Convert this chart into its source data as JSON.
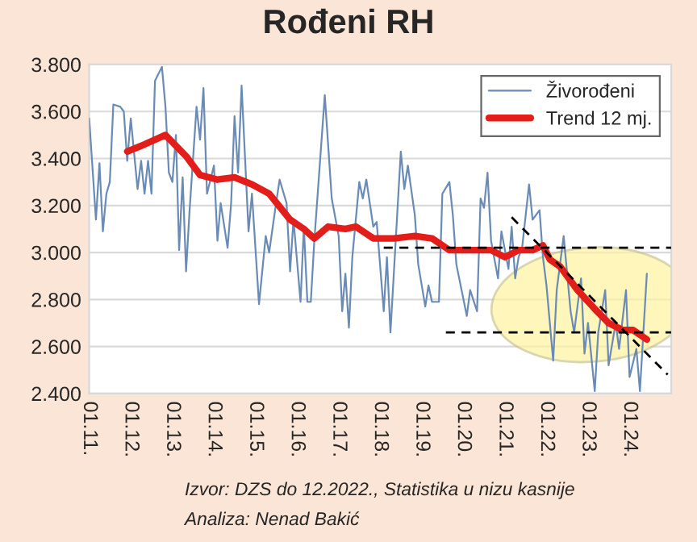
{
  "chart_data": {
    "type": "line",
    "title": "Rođeni RH",
    "xlim": [
      "2011-01",
      "2025-01"
    ],
    "xticks": [
      {
        "value": "2011-01",
        "label": "01.11."
      },
      {
        "value": "2012-01",
        "label": "01.12."
      },
      {
        "value": "2013-01",
        "label": "01.13."
      },
      {
        "value": "2014-01",
        "label": "01.14."
      },
      {
        "value": "2015-01",
        "label": "01.15."
      },
      {
        "value": "2016-01",
        "label": "01.16."
      },
      {
        "value": "2017-01",
        "label": "01.17."
      },
      {
        "value": "2018-01",
        "label": "01.18."
      },
      {
        "value": "2019-01",
        "label": "01.19."
      },
      {
        "value": "2020-01",
        "label": "01.20."
      },
      {
        "value": "2021-01",
        "label": "01.21."
      },
      {
        "value": "2022-01",
        "label": "01.22."
      },
      {
        "value": "2023-01",
        "label": "01.23."
      },
      {
        "value": "2024-01",
        "label": "01.24."
      }
    ],
    "ylim": [
      2400,
      3800
    ],
    "yticks": [
      {
        "value": 2400,
        "label": "2.400"
      },
      {
        "value": 2600,
        "label": "2.600"
      },
      {
        "value": 2800,
        "label": "2.800"
      },
      {
        "value": 3000,
        "label": "3.000"
      },
      {
        "value": 3200,
        "label": "3.200"
      },
      {
        "value": 3400,
        "label": "3.400"
      },
      {
        "value": 3600,
        "label": "3.600"
      },
      {
        "value": 3800,
        "label": "3.800"
      }
    ],
    "grid": "y",
    "legend": "top right",
    "series": [
      {
        "name": "Živorođeni",
        "color": "#6a8bb5",
        "x": [
          "2011-01",
          "2011-03",
          "2011-04",
          "2011-05",
          "2011-06",
          "2011-07",
          "2011-08",
          "2011-10",
          "2011-11",
          "2011-12",
          "2012-01",
          "2012-03",
          "2012-04",
          "2012-05",
          "2012-06",
          "2012-07",
          "2012-08",
          "2012-10",
          "2012-11",
          "2012-12",
          "2013-01",
          "2013-02",
          "2013-03",
          "2013-04",
          "2013-05",
          "2013-06",
          "2013-08",
          "2013-09",
          "2013-10",
          "2013-11",
          "2014-01",
          "2014-02",
          "2014-03",
          "2014-05",
          "2014-06",
          "2014-07",
          "2014-08",
          "2014-09",
          "2014-11",
          "2014-12",
          "2015-02",
          "2015-04",
          "2015-05",
          "2015-07",
          "2015-08",
          "2015-10",
          "2015-11",
          "2015-12",
          "2016-02",
          "2016-03",
          "2016-04",
          "2016-05",
          "2016-06",
          "2016-09",
          "2016-11",
          "2017-01",
          "2017-02",
          "2017-03",
          "2017-04",
          "2017-05",
          "2017-07",
          "2017-08",
          "2017-09",
          "2017-11",
          "2017-12",
          "2018-02",
          "2018-03",
          "2018-04",
          "2018-07",
          "2018-08",
          "2018-09",
          "2018-11",
          "2018-12",
          "2019-02",
          "2019-03",
          "2019-04",
          "2019-06",
          "2019-07",
          "2019-09",
          "2019-10",
          "2019-11",
          "2020-02",
          "2020-03",
          "2020-05",
          "2020-06",
          "2020-07",
          "2020-08",
          "2020-09",
          "2020-11",
          "2020-12",
          "2021-02",
          "2021-03",
          "2021-04",
          "2021-05",
          "2021-06",
          "2021-08",
          "2021-09",
          "2021-11",
          "2021-12",
          "2022-01",
          "2022-03",
          "2022-04",
          "2022-06",
          "2022-08",
          "2022-09",
          "2022-11",
          "2022-12",
          "2023-01",
          "2023-03",
          "2023-04",
          "2023-06",
          "2023-07",
          "2023-09",
          "2023-10",
          "2023-12",
          "2024-01",
          "2024-03",
          "2024-04",
          "2024-06"
        ],
        "values": [
          3570,
          3140,
          3380,
          3090,
          3250,
          3300,
          3630,
          3620,
          3600,
          3390,
          3570,
          3270,
          3390,
          3250,
          3390,
          3250,
          3730,
          3790,
          3620,
          3340,
          3300,
          3500,
          3010,
          3320,
          2920,
          3180,
          3620,
          3480,
          3700,
          3250,
          3370,
          3050,
          3210,
          3020,
          3210,
          3580,
          3340,
          3710,
          3090,
          3250,
          2780,
          3070,
          3000,
          3210,
          3310,
          3210,
          2920,
          3140,
          2790,
          3110,
          2790,
          2790,
          3050,
          3670,
          3230,
          3070,
          2750,
          2910,
          2680,
          2980,
          3300,
          3230,
          3310,
          3110,
          3130,
          2750,
          2980,
          2660,
          3430,
          3270,
          3370,
          3160,
          2950,
          2770,
          2860,
          2790,
          2790,
          3250,
          3300,
          3160,
          2950,
          2730,
          2840,
          2750,
          3230,
          3190,
          3340,
          3050,
          2890,
          3090,
          2930,
          3110,
          2890,
          2980,
          3020,
          3290,
          3140,
          3180,
          2980,
          2860,
          2540,
          2840,
          3070,
          2750,
          2660,
          2890,
          2570,
          2700,
          2410,
          2660,
          2840,
          2520,
          2700,
          2590,
          2840,
          2470,
          2590,
          2410,
          2910
        ]
      },
      {
        "name": "Trend 12 mj.",
        "color": "#e31e1a",
        "x": [
          "2011-12",
          "2012-05",
          "2012-11",
          "2013-05",
          "2013-09",
          "2014-02",
          "2014-07",
          "2014-12",
          "2015-05",
          "2015-11",
          "2016-03",
          "2016-06",
          "2016-10",
          "2017-03",
          "2017-06",
          "2017-11",
          "2018-05",
          "2018-11",
          "2019-04",
          "2019-09",
          "2020-03",
          "2020-09",
          "2021-01",
          "2021-05",
          "2021-09",
          "2021-12",
          "2022-02",
          "2022-05",
          "2022-10",
          "2023-03",
          "2023-07",
          "2023-11",
          "2024-02",
          "2024-06"
        ],
        "values": [
          3430,
          3460,
          3500,
          3410,
          3330,
          3310,
          3320,
          3290,
          3250,
          3140,
          3100,
          3060,
          3110,
          3100,
          3110,
          3060,
          3060,
          3070,
          3060,
          3010,
          3010,
          3010,
          2980,
          3010,
          3010,
          3030,
          2970,
          2940,
          2840,
          2760,
          2700,
          2670,
          2670,
          2630
        ]
      },
      {
        "color": "#000000",
        "line_style": "dashed",
        "x": [
          "2018-02",
          "2025-01"
        ],
        "values": [
          3020,
          3020
        ]
      },
      {
        "color": "#000000",
        "line_style": "dashed",
        "x": [
          "2019-08",
          "2025-01"
        ],
        "values": [
          2660,
          2660
        ]
      },
      {
        "color": "#000000",
        "line_style": "dashed",
        "x": [
          "2021-03",
          "2024-12"
        ],
        "values": [
          3150,
          2480
        ]
      }
    ],
    "annotations": [
      "Izvor: DZS do 12.2022., Statistika u nizu kasnije",
      "Analiza: Nenad Bakić"
    ]
  }
}
